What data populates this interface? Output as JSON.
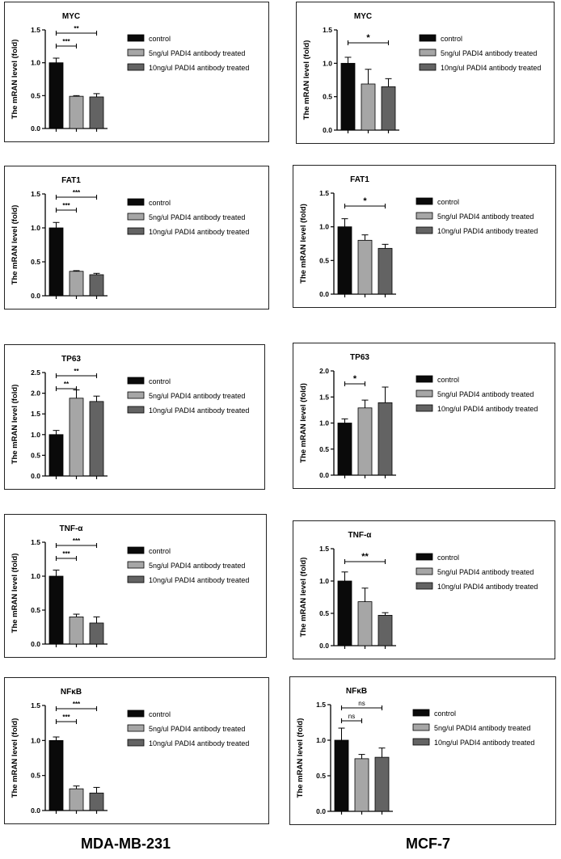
{
  "colors": {
    "control": "#0a0a0a",
    "five": "#a6a6a6",
    "ten": "#636363",
    "axis": "#000000"
  },
  "legend": [
    "control",
    "5ng/ul PADI4 antibody treated",
    "10ng/ul PADI4 antibody treated"
  ],
  "footer": {
    "left": "MDA-MB-231",
    "right": "MCF-7"
  },
  "chart_data": [
    {
      "id": "mda-myc",
      "type": "bar",
      "title": "MYC",
      "ylabel": "The mRAN level (fold)",
      "ylim": [
        0,
        1.5
      ],
      "yticks": [
        "0.0",
        "0.5",
        "1.0",
        "1.5"
      ],
      "categories": [
        "control",
        "5ng/ul PADI4 antibody treated",
        "10ng/ul PADI4 antibody treated"
      ],
      "values": [
        1.0,
        0.49,
        0.48
      ],
      "errors": [
        0.07,
        0.01,
        0.05
      ],
      "annotations": [
        {
          "from": 0,
          "to": 1,
          "label": "***"
        },
        {
          "from": 0,
          "to": 2,
          "label": "**"
        }
      ]
    },
    {
      "id": "mcf-myc",
      "type": "bar",
      "title": "MYC",
      "ylabel": "The mRAN level (fold)",
      "ylim": [
        0,
        1.5
      ],
      "yticks": [
        "0.0",
        "0.5",
        "1.0",
        "1.5"
      ],
      "categories": [
        "control",
        "5ng/ul PADI4 antibody treated",
        "10ng/ul PADI4 antibody treated"
      ],
      "values": [
        1.0,
        0.69,
        0.65
      ],
      "errors": [
        0.09,
        0.22,
        0.12
      ],
      "annotations": [
        {
          "from": 0,
          "to": 2,
          "label": "*"
        }
      ]
    },
    {
      "id": "mda-fat1",
      "type": "bar",
      "title": "FAT1",
      "ylabel": "The mRAN level (fold)",
      "ylim": [
        0,
        1.5
      ],
      "yticks": [
        "0.0",
        "0.5",
        "1.0",
        "1.5"
      ],
      "categories": [
        "control",
        "5ng/ul PADI4 antibody treated",
        "10ng/ul PADI4 antibody treated"
      ],
      "values": [
        1.0,
        0.36,
        0.31
      ],
      "errors": [
        0.08,
        0.01,
        0.02
      ],
      "annotations": [
        {
          "from": 0,
          "to": 1,
          "label": "***"
        },
        {
          "from": 0,
          "to": 2,
          "label": "***"
        }
      ]
    },
    {
      "id": "mcf-fat1",
      "type": "bar",
      "title": "FAT1",
      "ylabel": "The mRAN level (fold)",
      "ylim": [
        0,
        1.5
      ],
      "yticks": [
        "0.0",
        "0.5",
        "1.0",
        "1.5"
      ],
      "categories": [
        "control",
        "5ng/ul PADI4 antibody treated",
        "10ng/ul PADI4 antibody treated"
      ],
      "values": [
        1.0,
        0.8,
        0.68
      ],
      "errors": [
        0.12,
        0.08,
        0.06
      ],
      "annotations": [
        {
          "from": 0,
          "to": 2,
          "label": "*"
        }
      ]
    },
    {
      "id": "mda-tp63",
      "type": "bar",
      "title": "TP63",
      "ylabel": "The mRAN level (fold)",
      "ylim": [
        0,
        2.5
      ],
      "yticks": [
        "0.0",
        "0.5",
        "1.0",
        "1.5",
        "2.0",
        "2.5"
      ],
      "categories": [
        "control",
        "5ng/ul PADI4 antibody treated",
        "10ng/ul PADI4 antibody treated"
      ],
      "values": [
        1.0,
        1.88,
        1.8
      ],
      "errors": [
        0.1,
        0.2,
        0.13
      ],
      "annotations": [
        {
          "from": 0,
          "to": 1,
          "label": "**"
        },
        {
          "from": 0,
          "to": 2,
          "label": "**"
        }
      ]
    },
    {
      "id": "mcf-tp63",
      "type": "bar",
      "title": "TP63",
      "ylabel": "The mRAN level (fold)",
      "ylim": [
        0,
        2.0
      ],
      "yticks": [
        "0.0",
        "0.5",
        "1.0",
        "1.5",
        "2.0"
      ],
      "categories": [
        "control",
        "5ng/ul PADI4 antibody treated",
        "10ng/ul PADI4 antibody treated"
      ],
      "values": [
        1.0,
        1.29,
        1.39
      ],
      "errors": [
        0.08,
        0.15,
        0.3
      ],
      "annotations": [
        {
          "from": 0,
          "to": 1,
          "label": "*"
        }
      ]
    },
    {
      "id": "mda-tnfa",
      "type": "bar",
      "title": "TNF-α",
      "ylabel": "The mRAN level (fold)",
      "ylim": [
        0,
        1.5
      ],
      "yticks": [
        "0.0",
        "0.5",
        "1.0",
        "1.5"
      ],
      "categories": [
        "control",
        "5ng/ul PADI4 antibody treated",
        "10ng/ul PADI4 antibody treated"
      ],
      "values": [
        1.0,
        0.4,
        0.31
      ],
      "errors": [
        0.09,
        0.04,
        0.09
      ],
      "annotations": [
        {
          "from": 0,
          "to": 1,
          "label": "***"
        },
        {
          "from": 0,
          "to": 2,
          "label": "***"
        }
      ]
    },
    {
      "id": "mcf-tnfa",
      "type": "bar",
      "title": "TNF-α",
      "ylabel": "The mRAN level (fold)",
      "ylim": [
        0,
        1.5
      ],
      "yticks": [
        "0.0",
        "0.5",
        "1.0",
        "1.5"
      ],
      "categories": [
        "control",
        "5ng/ul PADI4 antibody treated",
        "10ng/ul PADI4 antibody treated"
      ],
      "values": [
        1.0,
        0.68,
        0.47
      ],
      "errors": [
        0.14,
        0.21,
        0.04
      ],
      "annotations": [
        {
          "from": 0,
          "to": 2,
          "label": "**"
        }
      ]
    },
    {
      "id": "mda-nfkb",
      "type": "bar",
      "title": "NFκB",
      "ylabel": "The mRAN level (fold)",
      "ylim": [
        0,
        1.5
      ],
      "yticks": [
        "0.0",
        "0.5",
        "1.0",
        "1.5"
      ],
      "categories": [
        "control",
        "5ng/ul PADI4 antibody treated",
        "10ng/ul PADI4 antibody treated"
      ],
      "values": [
        1.0,
        0.31,
        0.25
      ],
      "errors": [
        0.05,
        0.04,
        0.08
      ],
      "annotations": [
        {
          "from": 0,
          "to": 1,
          "label": "***"
        },
        {
          "from": 0,
          "to": 2,
          "label": "***"
        }
      ]
    },
    {
      "id": "mcf-nfkb",
      "type": "bar",
      "title": "NFκB",
      "ylabel": "The mRAN level (fold)",
      "ylim": [
        0,
        1.5
      ],
      "yticks": [
        "0.0",
        "0.5",
        "1.0",
        "1.5"
      ],
      "categories": [
        "control",
        "5ng/ul PADI4 antibody treated",
        "10ng/ul PADI4 antibody treated"
      ],
      "values": [
        1.0,
        0.74,
        0.76
      ],
      "errors": [
        0.17,
        0.06,
        0.13
      ],
      "annotations": [
        {
          "from": 0,
          "to": 1,
          "label": "ns"
        },
        {
          "from": 0,
          "to": 2,
          "label": "ns"
        }
      ]
    }
  ]
}
